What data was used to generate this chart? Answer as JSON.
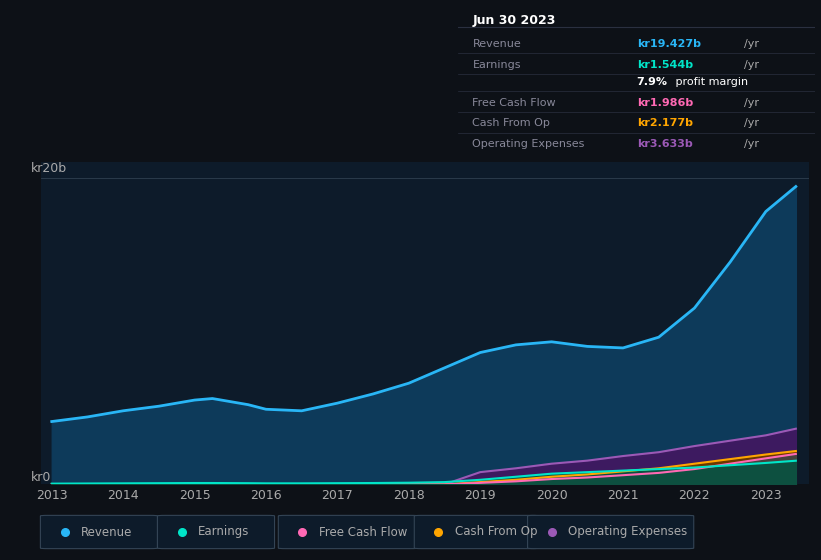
{
  "bg_color": "#0d1117",
  "plot_bg_color": "#0d1b2a",
  "grid_color": "#2a3a4a",
  "text_color": "#aaaaaa",
  "title_color": "#ffffff",
  "years": [
    2013,
    2013.5,
    2014,
    2014.5,
    2015,
    2015.25,
    2015.75,
    2016,
    2016.5,
    2017,
    2017.5,
    2018,
    2018.5,
    2019,
    2019.5,
    2020,
    2020.5,
    2021,
    2021.5,
    2022,
    2022.5,
    2023,
    2023.42
  ],
  "revenue": [
    4.1,
    4.4,
    4.8,
    5.1,
    5.5,
    5.6,
    5.2,
    4.9,
    4.8,
    5.3,
    5.9,
    6.6,
    7.6,
    8.6,
    9.1,
    9.3,
    9.0,
    8.9,
    9.6,
    11.5,
    14.5,
    17.8,
    19.427
  ],
  "earnings": [
    0.05,
    0.06,
    0.07,
    0.08,
    0.09,
    0.09,
    0.08,
    0.07,
    0.07,
    0.08,
    0.09,
    0.11,
    0.15,
    0.3,
    0.5,
    0.7,
    0.8,
    0.9,
    1.0,
    1.1,
    1.25,
    1.4,
    1.544
  ],
  "free_cash_flow": [
    0.0,
    0.0,
    0.0,
    0.0,
    0.0,
    0.0,
    0.0,
    0.0,
    0.0,
    0.0,
    0.0,
    0.0,
    0.0,
    0.1,
    0.2,
    0.35,
    0.45,
    0.6,
    0.75,
    1.0,
    1.35,
    1.7,
    1.986
  ],
  "cash_from_op": [
    0.0,
    0.0,
    0.0,
    0.0,
    0.0,
    0.0,
    0.0,
    0.0,
    0.0,
    0.0,
    0.0,
    0.0,
    0.0,
    0.15,
    0.3,
    0.5,
    0.65,
    0.85,
    1.05,
    1.35,
    1.65,
    1.95,
    2.177
  ],
  "op_expenses": [
    0.0,
    0.0,
    0.0,
    0.0,
    0.0,
    0.0,
    0.0,
    0.0,
    0.0,
    0.0,
    0.0,
    0.0,
    0.0,
    0.8,
    1.05,
    1.35,
    1.55,
    1.85,
    2.1,
    2.5,
    2.85,
    3.2,
    3.633
  ],
  "revenue_color": "#29b6f6",
  "earnings_color": "#00e5c8",
  "fcf_color": "#ff69b4",
  "cfop_color": "#ffa500",
  "opex_color": "#9b59b6",
  "revenue_fill": "#0d3a5a",
  "opex_fill": "#3d1a60",
  "cfop_fill": "#6b3800",
  "fcf_fill": "#444444",
  "earnings_fill": "#0d5040",
  "ylim_max": 21,
  "info_title": "Jun 30 2023",
  "info_label_color": "#888899",
  "info_bg": "#0a0e14",
  "info_border": "#2a3040",
  "legend_items": [
    {
      "label": "Revenue",
      "color": "#29b6f6"
    },
    {
      "label": "Earnings",
      "color": "#00e5c8"
    },
    {
      "label": "Free Cash Flow",
      "color": "#ff69b4"
    },
    {
      "label": "Cash From Op",
      "color": "#ffa500"
    },
    {
      "label": "Operating Expenses",
      "color": "#9b59b6"
    }
  ]
}
